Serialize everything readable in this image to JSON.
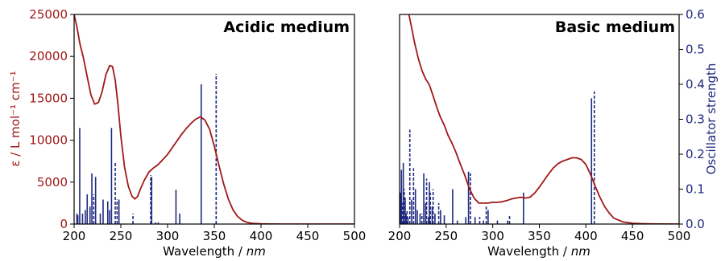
{
  "colors": {
    "absorption": "#a01818",
    "oscillator": "#1f2a80",
    "axis": "#000000"
  },
  "chart_data": [
    {
      "type": "line",
      "title": "Acidic medium",
      "xlabel": "Wavelength / nm",
      "xlabel_main": "Wavelength / ",
      "xlabel_unit": "nm",
      "ylabel": "ε / L mol⁻¹ cm⁻¹",
      "xlim": [
        200,
        500
      ],
      "ylim": [
        0,
        25000
      ],
      "xticks": [
        200,
        250,
        300,
        350,
        400,
        450,
        500
      ],
      "yticks": [
        0,
        5000,
        10000,
        15000,
        20000,
        25000
      ],
      "y2lim": [
        0,
        0.6
      ],
      "grid": false,
      "series": [
        {
          "kind": "absorption spectrum",
          "x": [
            200,
            203,
            206,
            210,
            214,
            218,
            222,
            226,
            230,
            234,
            238,
            241,
            244,
            247,
            250,
            254,
            258,
            262,
            265,
            268,
            271,
            275,
            280,
            285,
            290,
            295,
            300,
            305,
            310,
            315,
            320,
            325,
            330,
            335,
            340,
            345,
            350,
            355,
            360,
            365,
            370,
            375,
            380,
            385,
            390,
            400,
            410,
            420,
            430,
            450,
            475,
            500
          ],
          "y": [
            25000,
            23500,
            21600,
            19800,
            17600,
            15400,
            14300,
            14500,
            15800,
            17800,
            18900,
            18800,
            17200,
            14200,
            10500,
            6800,
            4500,
            3300,
            3000,
            3300,
            4200,
            5200,
            6200,
            6700,
            7100,
            7700,
            8300,
            9100,
            9900,
            10700,
            11400,
            12000,
            12500,
            12800,
            12400,
            11300,
            9300,
            7000,
            4800,
            3000,
            1700,
            900,
            450,
            200,
            100,
            30,
            10,
            0,
            0,
            0,
            0,
            0
          ]
        },
        {
          "kind": "oscillator strength",
          "axis": "right",
          "sticks": [
            {
              "x": 203,
              "f": 0.03,
              "style": "solid"
            },
            {
              "x": 204,
              "f": 0.025,
              "style": "solid"
            },
            {
              "x": 206,
              "f": 0.275,
              "style": "solid"
            },
            {
              "x": 209,
              "f": 0.03,
              "style": "solid"
            },
            {
              "x": 212,
              "f": 0.04,
              "style": "solid"
            },
            {
              "x": 214,
              "f": 0.085,
              "style": "solid"
            },
            {
              "x": 217,
              "f": 0.05,
              "style": "solid"
            },
            {
              "x": 219,
              "f": 0.145,
              "style": "solid"
            },
            {
              "x": 221,
              "f": 0.085,
              "style": "dashed"
            },
            {
              "x": 223,
              "f": 0.135,
              "style": "solid"
            },
            {
              "x": 228,
              "f": 0.03,
              "style": "solid"
            },
            {
              "x": 231,
              "f": 0.07,
              "style": "solid"
            },
            {
              "x": 236,
              "f": 0.065,
              "style": "solid"
            },
            {
              "x": 238,
              "f": 0.04,
              "style": "solid"
            },
            {
              "x": 240,
              "f": 0.275,
              "style": "solid"
            },
            {
              "x": 244,
              "f": 0.175,
              "style": "dashed"
            },
            {
              "x": 246,
              "f": 0.07,
              "style": "dashed"
            },
            {
              "x": 248,
              "f": 0.07,
              "style": "solid"
            },
            {
              "x": 263,
              "f": 0.03,
              "style": "dashed"
            },
            {
              "x": 282,
              "f": 0.14,
              "style": "dashed"
            },
            {
              "x": 283,
              "f": 0.135,
              "style": "solid"
            },
            {
              "x": 287,
              "f": 0.005,
              "style": "solid"
            },
            {
              "x": 290,
              "f": 0.005,
              "style": "solid"
            },
            {
              "x": 309,
              "f": 0.098,
              "style": "solid"
            },
            {
              "x": 313,
              "f": 0.03,
              "style": "solid"
            },
            {
              "x": 336,
              "f": 0.4,
              "style": "solid"
            },
            {
              "x": 352,
              "f": 0.43,
              "style": "dashed"
            }
          ]
        }
      ]
    },
    {
      "type": "line",
      "title": "Basic medium",
      "xlabel": "Wavelength / nm",
      "xlabel_main": "Wavelength / ",
      "xlabel_unit": "nm",
      "y2label": "Oscillator strength",
      "xlim": [
        200,
        500
      ],
      "ylim": [
        0,
        25000
      ],
      "y2lim": [
        0,
        0.6
      ],
      "xticks": [
        200,
        250,
        300,
        350,
        400,
        450,
        500
      ],
      "y2ticks": [
        0.0,
        0.1,
        0.2,
        0.3,
        0.4,
        0.5,
        0.6
      ],
      "grid": false,
      "series": [
        {
          "kind": "absorption spectrum",
          "x": [
            210,
            213,
            216,
            220,
            224,
            228,
            232,
            236,
            240,
            244,
            248,
            252,
            256,
            260,
            265,
            270,
            275,
            280,
            285,
            290,
            295,
            300,
            305,
            310,
            315,
            320,
            325,
            330,
            335,
            340,
            345,
            350,
            355,
            360,
            365,
            370,
            375,
            380,
            385,
            390,
            395,
            400,
            405,
            410,
            415,
            420,
            425,
            430,
            440,
            450,
            460,
            470,
            480,
            500
          ],
          "y": [
            25000,
            23400,
            21700,
            19800,
            18300,
            17300,
            16600,
            15300,
            13900,
            12700,
            11800,
            10600,
            9700,
            8700,
            7200,
            5800,
            4200,
            3100,
            2500,
            2500,
            2500,
            2600,
            2600,
            2650,
            2800,
            3000,
            3100,
            3200,
            3100,
            3200,
            3700,
            4400,
            5200,
            6000,
            6700,
            7200,
            7500,
            7700,
            7900,
            7900,
            7700,
            7100,
            5900,
            4500,
            3200,
            2100,
            1300,
            700,
            250,
            100,
            50,
            20,
            10,
            0
          ]
        },
        {
          "kind": "oscillator strength",
          "axis": "right",
          "sticks": [
            {
              "x": 201,
              "f": 0.09,
              "style": "solid"
            },
            {
              "x": 202,
              "f": 0.155,
              "style": "solid"
            },
            {
              "x": 203,
              "f": 0.06,
              "style": "dashed"
            },
            {
              "x": 204,
              "f": 0.175,
              "style": "solid"
            },
            {
              "x": 205,
              "f": 0.1,
              "style": "dashed"
            },
            {
              "x": 206,
              "f": 0.075,
              "style": "solid"
            },
            {
              "x": 207,
              "f": 0.03,
              "style": "solid"
            },
            {
              "x": 208,
              "f": 0.04,
              "style": "dashed"
            },
            {
              "x": 209,
              "f": 0.02,
              "style": "solid"
            },
            {
              "x": 211,
              "f": 0.27,
              "style": "dashed"
            },
            {
              "x": 213,
              "f": 0.07,
              "style": "solid"
            },
            {
              "x": 215,
              "f": 0.16,
              "style": "dashed"
            },
            {
              "x": 217,
              "f": 0.1,
              "style": "solid"
            },
            {
              "x": 219,
              "f": 0.04,
              "style": "solid"
            },
            {
              "x": 222,
              "f": 0.03,
              "style": "solid"
            },
            {
              "x": 224,
              "f": 0.03,
              "style": "dashed"
            },
            {
              "x": 226,
              "f": 0.145,
              "style": "solid"
            },
            {
              "x": 228,
              "f": 0.06,
              "style": "solid"
            },
            {
              "x": 229,
              "f": 0.13,
              "style": "dashed"
            },
            {
              "x": 231,
              "f": 0.02,
              "style": "solid"
            },
            {
              "x": 232,
              "f": 0.12,
              "style": "solid"
            },
            {
              "x": 233,
              "f": 0.09,
              "style": "dashed"
            },
            {
              "x": 235,
              "f": 0.05,
              "style": "solid"
            },
            {
              "x": 236,
              "f": 0.1,
              "style": "dashed"
            },
            {
              "x": 238,
              "f": 0.03,
              "style": "solid"
            },
            {
              "x": 242,
              "f": 0.06,
              "style": "dashed"
            },
            {
              "x": 244,
              "f": 0.04,
              "style": "solid"
            },
            {
              "x": 248,
              "f": 0.025,
              "style": "solid"
            },
            {
              "x": 257,
              "f": 0.1,
              "style": "solid"
            },
            {
              "x": 262,
              "f": 0.01,
              "style": "solid"
            },
            {
              "x": 271,
              "f": 0.02,
              "style": "solid"
            },
            {
              "x": 274,
              "f": 0.15,
              "style": "solid"
            },
            {
              "x": 276,
              "f": 0.145,
              "style": "dashed"
            },
            {
              "x": 281,
              "f": 0.02,
              "style": "solid"
            },
            {
              "x": 286,
              "f": 0.02,
              "style": "dashed"
            },
            {
              "x": 290,
              "f": 0.01,
              "style": "solid"
            },
            {
              "x": 293,
              "f": 0.05,
              "style": "dashed"
            },
            {
              "x": 295,
              "f": 0.04,
              "style": "solid"
            },
            {
              "x": 305,
              "f": 0.01,
              "style": "solid"
            },
            {
              "x": 316,
              "f": 0.01,
              "style": "solid"
            },
            {
              "x": 318,
              "f": 0.025,
              "style": "dashed"
            },
            {
              "x": 333,
              "f": 0.09,
              "style": "solid"
            },
            {
              "x": 406,
              "f": 0.36,
              "style": "solid"
            },
            {
              "x": 409,
              "f": 0.38,
              "style": "dashed"
            }
          ]
        }
      ]
    }
  ]
}
